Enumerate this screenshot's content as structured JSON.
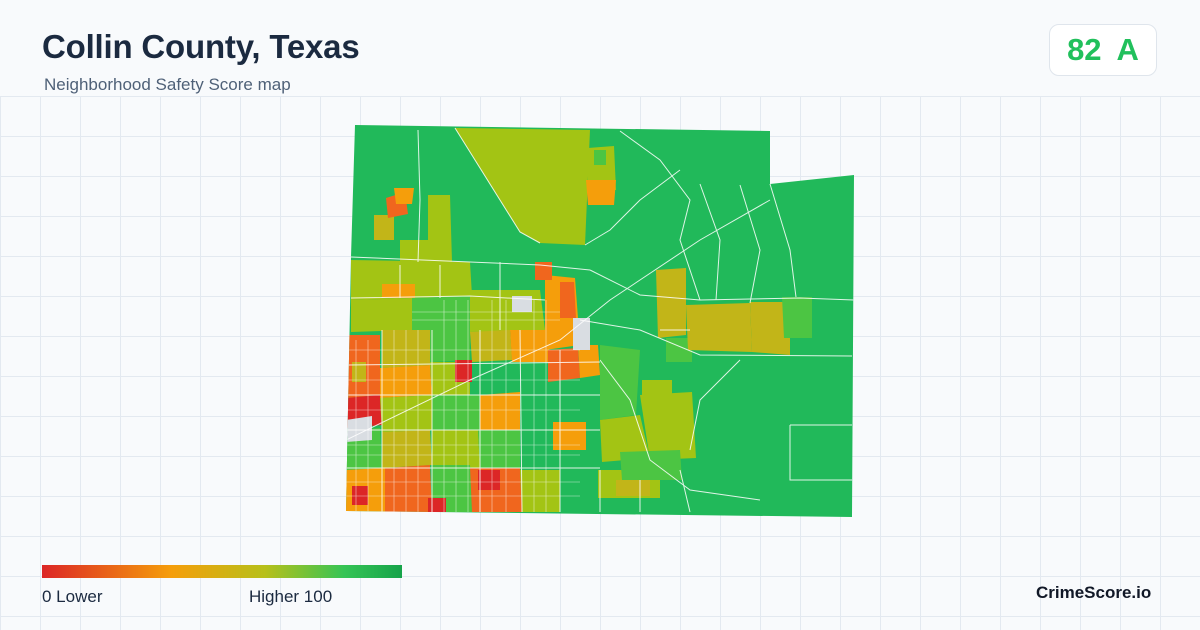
{
  "header": {
    "title": "Collin County, Texas",
    "subtitle": "Neighborhood Safety Score map"
  },
  "score": {
    "value": "82",
    "grade": "A",
    "color": "#21c05c"
  },
  "map": {
    "colors": {
      "lowest": "#dc2626",
      "low": "#f0661e",
      "mid_low": "#f59e0b",
      "mid": "#c2b518",
      "mid_high": "#a3c414",
      "high": "#4cc543",
      "highest": "#21b95a",
      "no_data": "#d9dde2",
      "boundary": "#ffffff"
    }
  },
  "legend": {
    "min_label": "0  Lower",
    "max_label": "Higher  100",
    "gradient": [
      "#dc2626",
      "#f59e0b",
      "#b7c01a",
      "#35c455",
      "#16a34a"
    ]
  },
  "footer": {
    "brand": "CrimeScore.io"
  }
}
